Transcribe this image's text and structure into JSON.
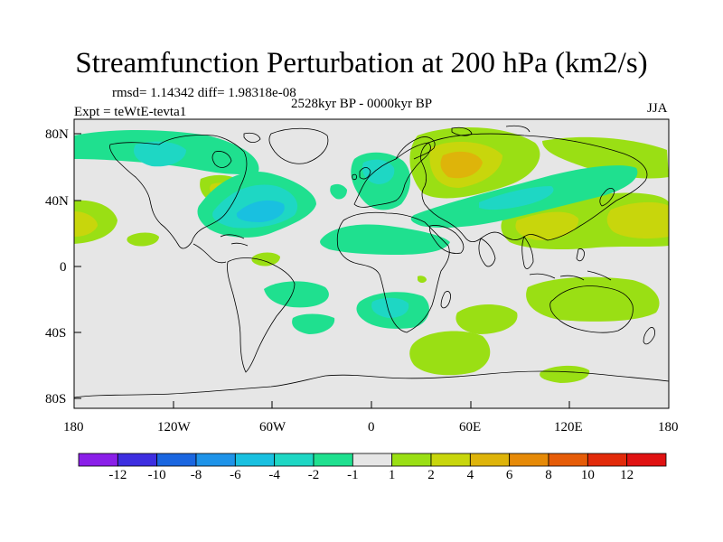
{
  "title": "Streamfunction Perturbation at 200 hPa (km2/s)",
  "stats": "rmsd= 1.14342 diff= 1.98318e-08",
  "period": "2528kyr BP - 0000kyr BP",
  "experiment": "Expt = teWtE-tevta1",
  "season": "JJA",
  "lat_ticks": [
    "80N",
    "40N",
    "0",
    "40S",
    "80S"
  ],
  "lon_ticks": [
    "180",
    "120W",
    "60W",
    "0",
    "60E",
    "120E",
    "180"
  ],
  "colorbar": {
    "labels": [
      "-12",
      "-10",
      "-8",
      "-6",
      "-4",
      "-2",
      "-1",
      "1",
      "2",
      "4",
      "6",
      "8",
      "10",
      "12"
    ],
    "colors": [
      "#8a1fe8",
      "#3d2ee0",
      "#1a66e0",
      "#1e93e8",
      "#19c0e0",
      "#1ed7c4",
      "#1fe08f",
      "#e6e6e6",
      "#9adf14",
      "#c8d60c",
      "#deb40a",
      "#e68a07",
      "#e65c08",
      "#e22a0a",
      "#e01212"
    ]
  },
  "colors": {
    "neutral": "#e6e6e6",
    "neg_weak": "#1fe08f",
    "neg_mid": "#1ed7c4",
    "neg_strong": "#19c0e0",
    "pos_weak": "#9adf14",
    "pos_mid": "#c8d60c",
    "pos_strong": "#deb40a"
  }
}
